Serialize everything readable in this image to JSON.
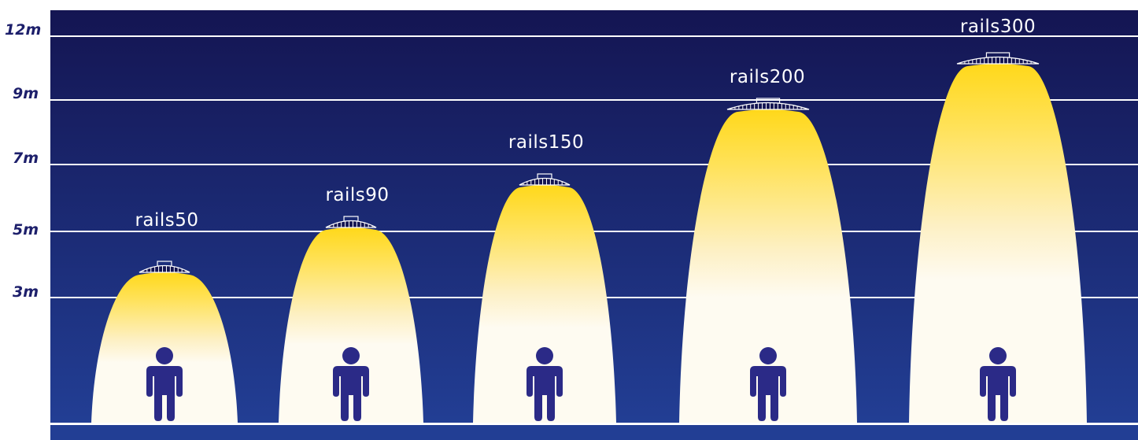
{
  "levels": [
    {
      "label": "12m"
    },
    {
      "label": "9m"
    },
    {
      "label": "7m"
    },
    {
      "label": "5m"
    },
    {
      "label": "3m"
    }
  ],
  "products": [
    {
      "name": "rails50"
    },
    {
      "name": "rails90"
    },
    {
      "name": "rails150"
    },
    {
      "name": "rails200"
    },
    {
      "name": "rails300"
    }
  ],
  "colors": {
    "sky_top": "#141552",
    "sky_bottom": "#223e94",
    "floor": "#223e94",
    "light_core": "#ffd81a",
    "light_fade": "#fefbf1",
    "person": "#2b2a87",
    "label_text": "#1d1f6b"
  },
  "icons": {
    "fixture": "highbay-fixture-icon",
    "person": "person-icon"
  }
}
